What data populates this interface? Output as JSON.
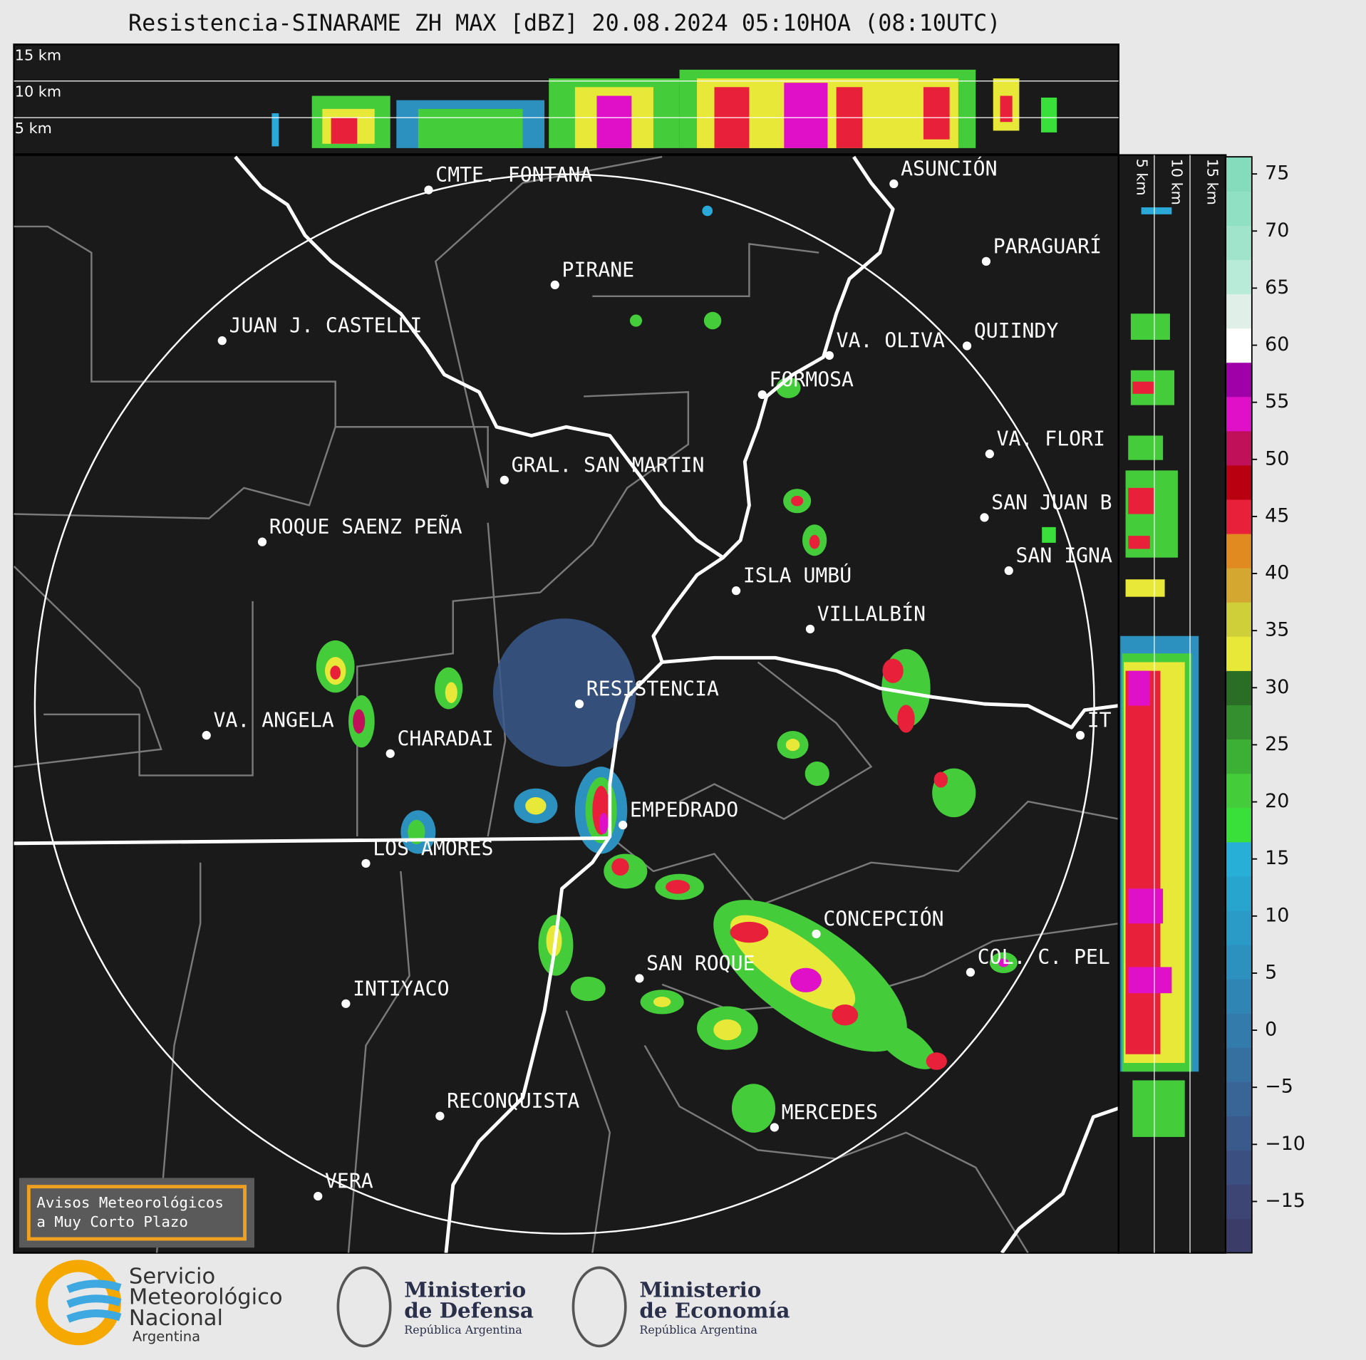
{
  "title": "Resistencia-SINARAME ZH MAX [dBZ] 20.08.2024 05:10HOA (08:10UTC)",
  "top_panel": {
    "height_labels": [
      "15 km",
      "10 km",
      "5 km"
    ]
  },
  "side_panel": {
    "height_labels": [
      "5 km",
      "10 km",
      "15 km"
    ]
  },
  "cities": [
    "CMTE. FONTANA",
    "PIRANE",
    "JUAN J. CASTELLI",
    "ASUNCIÓN",
    "PARAGUARÍ",
    "VA. OLIVA",
    "QUIINDY",
    "FORMOSA",
    "VA. FLORI",
    "GRAL. SAN MARTIN",
    "SAN JUAN B",
    "ROQUE SAENZ PEÑA",
    "SAN IGNA",
    "ISLA UMBÚ",
    "VILLALBÍN",
    "RESISTENCIA",
    "VA. ANGELA",
    "CHARADAI",
    "IT",
    "EMPEDRADO",
    "LOS AMORES",
    "CONCEPCIÓN",
    "COL. C. PEL",
    "SAN ROQUE",
    "INTIYACO",
    "RECONQUISTA",
    "MERCEDES",
    "VERA"
  ],
  "colorbar": {
    "lim": [
      -19.5,
      76.5
    ],
    "ticks": [
      75,
      70,
      65,
      60,
      55,
      50,
      45,
      40,
      35,
      30,
      25,
      20,
      15,
      10,
      5,
      0,
      {
        "value": -5,
        "label": "−5"
      },
      {
        "value": -10,
        "label": "−10"
      },
      {
        "value": -15,
        "label": "−15"
      }
    ],
    "colors": [
      "#3b3d68",
      "#3c4574",
      "#3b4f80",
      "#3a5a8c",
      "#386596",
      "#3570a0",
      "#327baa",
      "#2f86b4",
      "#2c91be",
      "#2a9bc6",
      "#28a5cf",
      "#27afd8",
      "#3ae03a",
      "#44cc3a",
      "#3cb034",
      "#34902e",
      "#2a6e26",
      "#e8e838",
      "#cfcf3a",
      "#d4a830",
      "#e08a20",
      "#e8203a",
      "#b80010",
      "#c0105a",
      "#e010c8",
      "#a000a8",
      "#ffffff",
      "#e0f0e8",
      "#b8ecd8",
      "#a0e4cc",
      "#90e0c4",
      "#84dcbc"
    ]
  },
  "warning_box": {
    "lines": [
      "Avisos Meteorológicos",
      "a Muy Corto Plazo"
    ]
  },
  "logos": {
    "smn": [
      "Servicio",
      "Meteorológico",
      "Nacional",
      "Argentina"
    ],
    "defensa": [
      "Ministerio",
      "de Defensa",
      "República Argentina"
    ],
    "economia": [
      "Ministerio",
      "de Economía",
      "República Argentina"
    ]
  }
}
